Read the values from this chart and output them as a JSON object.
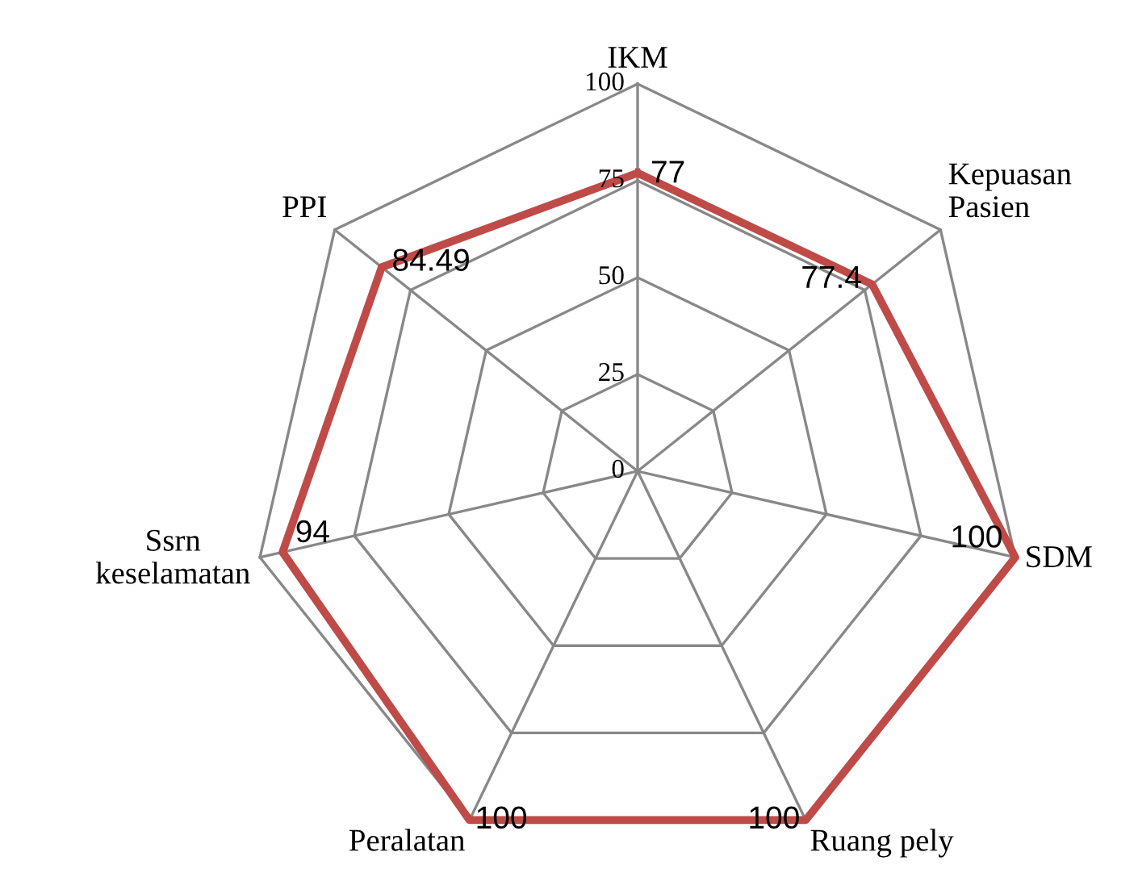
{
  "chart_data": {
    "type": "radar",
    "categories": [
      "IKM",
      "Kepuasan\nPasien",
      "SDM",
      "Ruang pely",
      "Peralatan",
      "Ssrn\nkeselamatan",
      "PPI"
    ],
    "series": [
      {
        "color": "#be4b48",
        "values": [
          77,
          77.4,
          100,
          100,
          100,
          94,
          84.49
        ]
      }
    ],
    "ylim": [
      0,
      100
    ],
    "yticks": [
      0,
      25,
      50,
      75,
      100
    ],
    "grid": true,
    "data_labels": true
  }
}
